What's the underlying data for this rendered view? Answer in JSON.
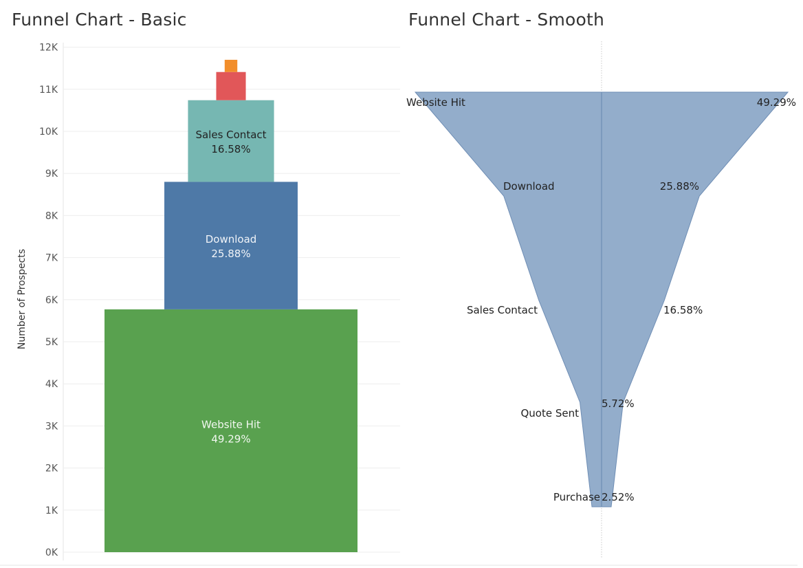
{
  "left_title": "Funnel Chart - Basic",
  "right_title": "Funnel Chart - Smooth",
  "colors": {
    "website_hit": "#59A14F",
    "download": "#4E79A7",
    "sales_contact": "#76B7B2",
    "quote_sent": "#E15759",
    "purchase": "#F28E2B",
    "smooth_fill": "#93ADCB",
    "smooth_stroke": "#6E8DB4"
  },
  "chart_data": [
    {
      "type": "bar",
      "subtype": "funnel",
      "title": "Funnel Chart - Basic",
      "ylabel": "Number of Prospects",
      "ylim": [
        0,
        12000
      ],
      "y_ticks": [
        "0K",
        "1K",
        "2K",
        "3K",
        "4K",
        "5K",
        "6K",
        "7K",
        "8K",
        "9K",
        "10K",
        "11K",
        "12K"
      ],
      "grid": true,
      "categories": [
        "Website Hit",
        "Download",
        "Sales Contact",
        "Quote Sent",
        "Purchase"
      ],
      "values": [
        5770,
        3030,
        1940,
        670,
        290
      ],
      "percent_labels": [
        "49.29%",
        "25.88%",
        "16.58%",
        "5.72%",
        "2.52%"
      ],
      "shown_labels": [
        true,
        true,
        true,
        false,
        false
      ]
    },
    {
      "type": "area",
      "subtype": "smooth-funnel",
      "title": "Funnel Chart - Smooth",
      "categories": [
        "Website Hit",
        "Download",
        "Sales Contact",
        "Quote Sent",
        "Purchase"
      ],
      "percent_labels": [
        "49.29%",
        "25.88%",
        "16.58%",
        "5.72%",
        "2.52%"
      ],
      "values": [
        49.29,
        25.88,
        16.58,
        5.72,
        2.52
      ]
    }
  ]
}
